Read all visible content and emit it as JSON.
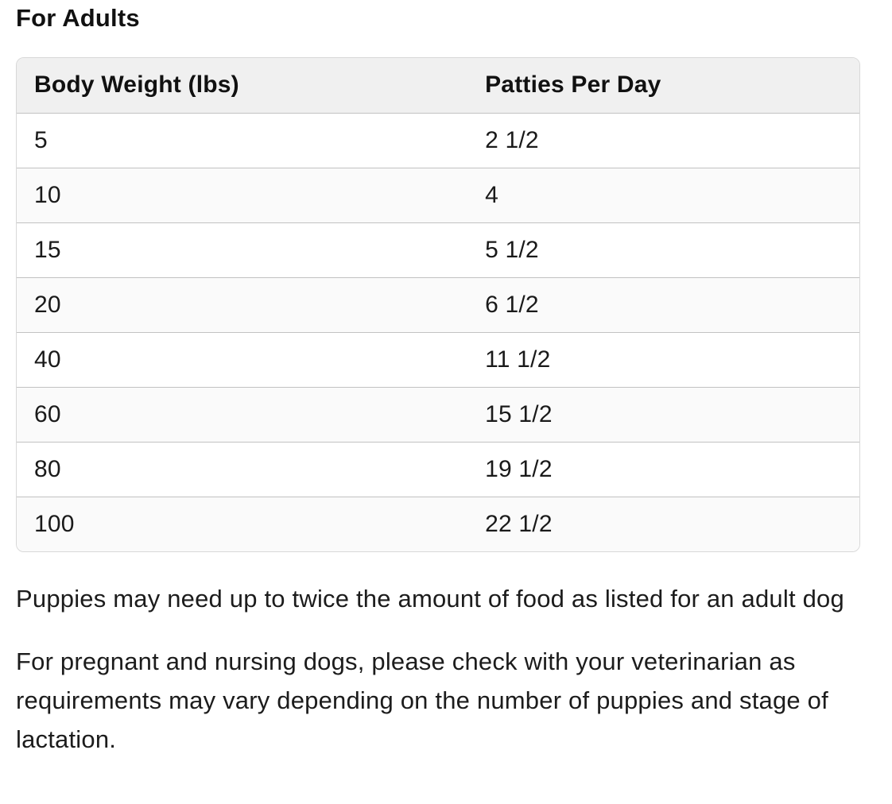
{
  "heading": "For Adults",
  "table": {
    "columns": [
      {
        "label": "Body Weight (lbs)"
      },
      {
        "label": "Patties Per Day"
      }
    ],
    "rows": [
      {
        "weight": "5",
        "patties": "2 1/2"
      },
      {
        "weight": "10",
        "patties": "4"
      },
      {
        "weight": "15",
        "patties": "5 1/2"
      },
      {
        "weight": "20",
        "patties": "6 1/2"
      },
      {
        "weight": "40",
        "patties": "11 1/2"
      },
      {
        "weight": "60",
        "patties": "15 1/2"
      },
      {
        "weight": "80",
        "patties": "19 1/2"
      },
      {
        "weight": "100",
        "patties": "22 1/2"
      }
    ]
  },
  "notes": {
    "puppies": "Puppies may need up to twice the amount of food as listed for an adult dog",
    "pregnant": "For pregnant and nursing dogs, please check with your veterinarian as requirements may vary depending on the number of puppies and stage of lactation."
  },
  "colors": {
    "header_bg": "#f0f0f0",
    "alt_row_bg": "#fafafa",
    "border": "#d8d8d8",
    "divider": "#c2c2c2",
    "text": "#1a1a1a",
    "page_bg": "#ffffff"
  }
}
